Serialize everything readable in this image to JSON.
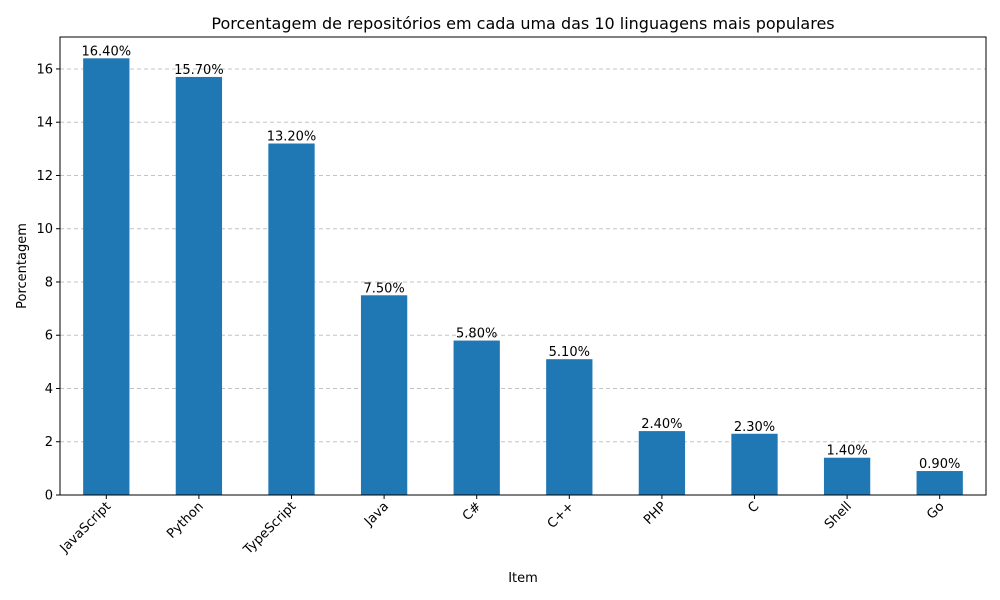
{
  "chart_data": {
    "type": "bar",
    "title": "Porcentagem de repositórios em cada uma das 10 linguagens mais populares",
    "xlabel": "Item",
    "ylabel": "Porcentagem",
    "categories": [
      "JavaScript",
      "Python",
      "TypeScript",
      "Java",
      "C#",
      "C++",
      "PHP",
      "C",
      "Shell",
      "Go"
    ],
    "values": [
      16.4,
      15.7,
      13.2,
      7.5,
      5.8,
      5.1,
      2.4,
      2.3,
      1.4,
      0.9
    ],
    "data_labels": [
      "16.40%",
      "15.70%",
      "13.20%",
      "7.50%",
      "5.80%",
      "5.10%",
      "2.40%",
      "2.30%",
      "1.40%",
      "0.90%"
    ],
    "yticks": [
      0,
      2,
      4,
      6,
      8,
      10,
      12,
      14,
      16
    ],
    "ylim": [
      0,
      17.2
    ],
    "grid": "y-dashed",
    "bar_color": "#1f77b4"
  }
}
